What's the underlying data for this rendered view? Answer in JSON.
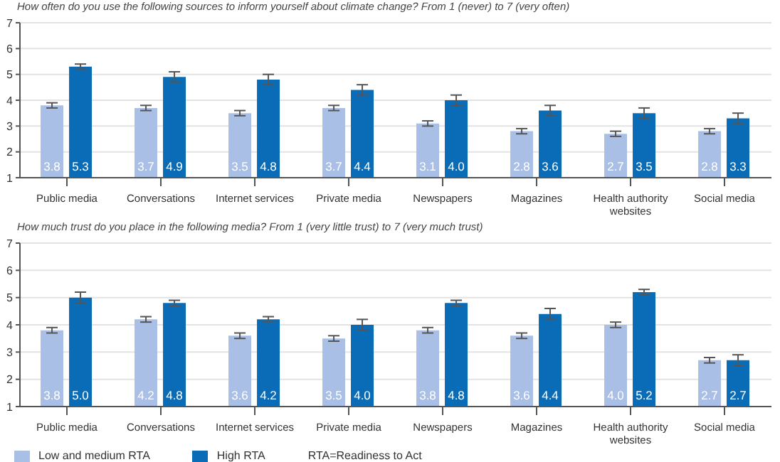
{
  "chart_data": [
    {
      "type": "bar",
      "title": "How often do you use the following sources to inform yourself about climate change? From 1 (never) to 7 (very often)",
      "categories": [
        "Public media",
        "Conversations",
        "Internet services",
        "Private media",
        "Newspapers",
        "Magazines",
        "Health authority websites",
        "Social media"
      ],
      "series": [
        {
          "color": "#a9bfe6",
          "values": [
            3.8,
            3.7,
            3.5,
            3.7,
            3.1,
            2.8,
            2.7,
            2.8
          ],
          "errors": [
            0.1,
            0.1,
            0.1,
            0.1,
            0.1,
            0.1,
            0.1,
            0.1
          ],
          "value_labels": [
            "3.8",
            "3.7",
            "3.5",
            "3.7",
            "3.1",
            "2.8",
            "2.7",
            "2.8"
          ]
        },
        {
          "color": "#0a6cb6",
          "values": [
            5.3,
            4.9,
            4.8,
            4.4,
            4.0,
            3.6,
            3.5,
            3.3
          ],
          "errors": [
            0.1,
            0.2,
            0.2,
            0.2,
            0.2,
            0.2,
            0.2,
            0.2
          ],
          "value_labels": [
            "5.3",
            "4.9",
            "4.8",
            "4.4",
            "4.0",
            "3.6",
            "3.5",
            "3.3"
          ]
        }
      ],
      "ylim": [
        1,
        7
      ],
      "yticks": [
        1,
        2,
        3,
        4,
        5,
        6,
        7
      ],
      "grid": "y"
    },
    {
      "type": "bar",
      "title": "How much trust do you place in the following media? From 1 (very little trust) to 7 (very much trust)",
      "categories": [
        "Public media",
        "Conversations",
        "Internet services",
        "Private media",
        "Newspapers",
        "Magazines",
        "Health authority websites",
        "Social media"
      ],
      "series": [
        {
          "name": "Low and medium RTA",
          "color": "#a9bfe6",
          "values": [
            3.8,
            4.2,
            3.6,
            3.5,
            3.8,
            3.6,
            4.0,
            2.7
          ],
          "errors": [
            0.1,
            0.1,
            0.1,
            0.1,
            0.1,
            0.1,
            0.1,
            0.1
          ],
          "value_labels": [
            "3.8",
            "4.2",
            "3.6",
            "3.5",
            "3.8",
            "3.6",
            "4.0",
            "2.7"
          ]
        },
        {
          "name": "High RTA",
          "color": "#0a6cb6",
          "values": [
            5.0,
            4.8,
            4.2,
            4.0,
            4.8,
            4.4,
            5.2,
            2.7
          ],
          "errors": [
            0.2,
            0.1,
            0.1,
            0.2,
            0.1,
            0.2,
            0.1,
            0.2
          ],
          "value_labels": [
            "5.0",
            "4.8",
            "4.2",
            "4.0",
            "4.8",
            "4.4",
            "5.2",
            "2.7"
          ]
        }
      ],
      "ylim": [
        1,
        7
      ],
      "yticks": [
        1,
        2,
        3,
        4,
        5,
        6,
        7
      ],
      "grid": "y",
      "legend": "bottom",
      "annotations": [
        "RTA=Readiness to Act"
      ]
    }
  ]
}
